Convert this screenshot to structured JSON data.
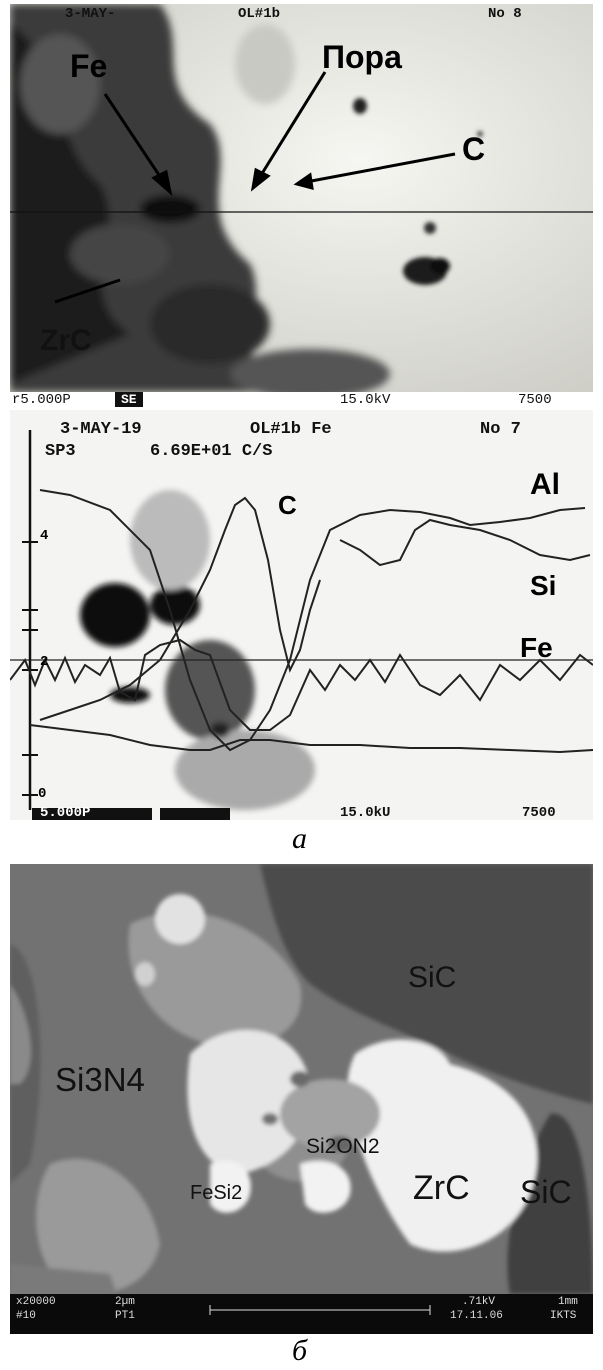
{
  "panel_a_top": {
    "header_left": "3-MAY-",
    "header_mid": "OL#1b",
    "header_right": "No  8",
    "labels": {
      "fe": "Fe",
      "pora": "Пора",
      "c": "C",
      "zrc": "ZrC"
    },
    "footer": {
      "scale": "r5.000P",
      "mode": "SE",
      "kv": "15.0kV",
      "mag": "7500"
    }
  },
  "panel_a_bottom": {
    "header_line1_left": "3-MAY-19",
    "header_line1_mid": "OL#1b Fe",
    "header_line1_right": "No  7",
    "header_line2_left": "SP3",
    "header_line2_mid": "6.69E+01 C/S",
    "labels": {
      "c": "C",
      "al": "Al",
      "si": "Si",
      "fe": "Fe"
    },
    "axis_ticks": [
      "4",
      "2",
      "0"
    ],
    "footer": {
      "scale": "5.000P",
      "kv": "15.0kU",
      "mag": "7500"
    }
  },
  "caption_a": "а",
  "panel_b": {
    "labels": {
      "sic_top": "SiC",
      "si3n4": "Si3N4",
      "si2on2": "Si2ON2",
      "fesi2": "FeSi2",
      "zrc": "ZrC",
      "sic_right": "SiC"
    },
    "footer": {
      "mag": "x20000",
      "num": "#10",
      "scale": "2µm",
      "pt": "PT1",
      "kv": ".71kV",
      "scale2": "1mm",
      "date": "17.11.06",
      "org": "IKTS"
    }
  },
  "caption_b": "б"
}
